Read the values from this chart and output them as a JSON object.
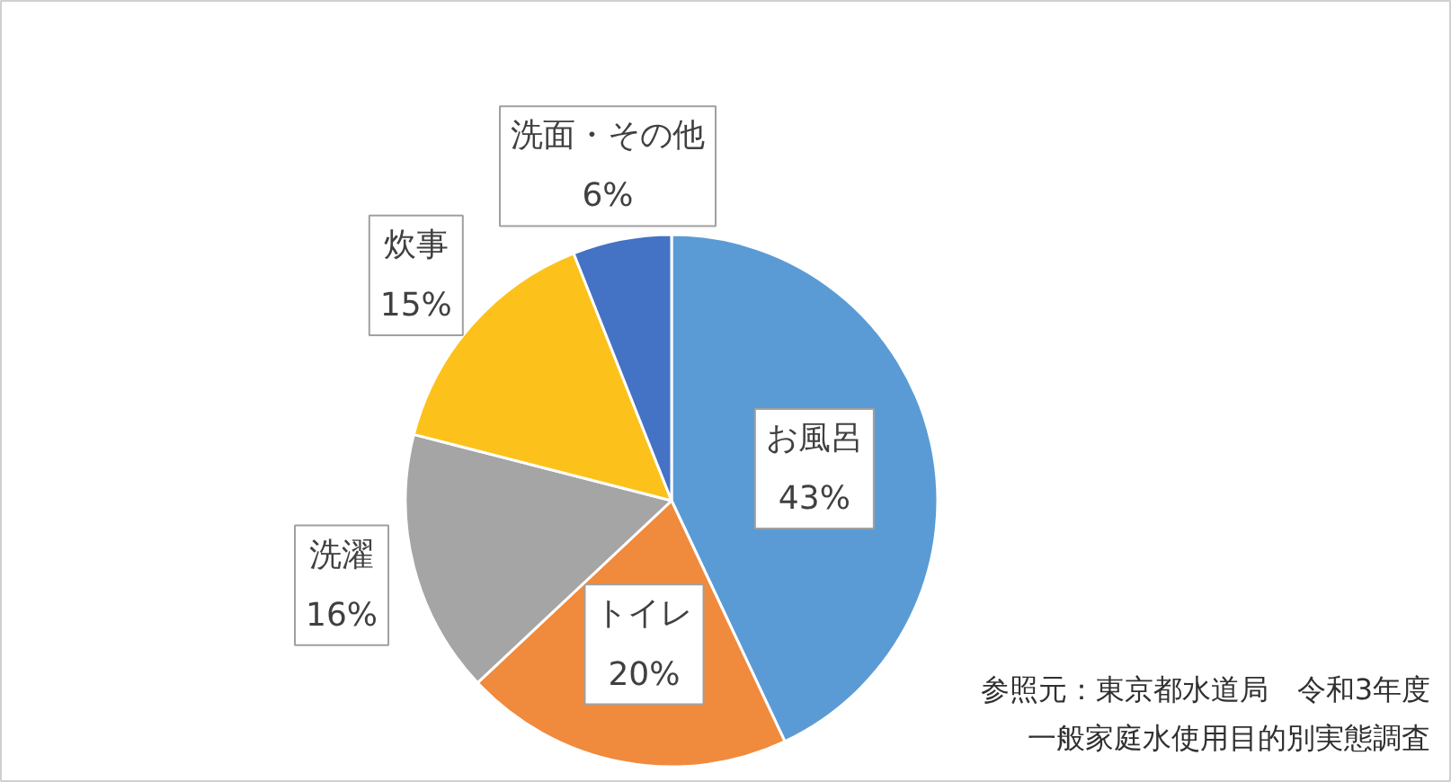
{
  "chart_data": {
    "type": "pie",
    "categories": [
      "お風呂",
      "トイレ",
      "洗濯",
      "炊事",
      "洗面・その他"
    ],
    "values": [
      43,
      20,
      16,
      15,
      6
    ],
    "value_labels": [
      "43%",
      "20%",
      "16%",
      "15%",
      "6%"
    ],
    "colors": [
      "#5b9bd5",
      "#f08a3c",
      "#a5a5a5",
      "#fcc21b",
      "#4472c4"
    ],
    "annotations": [
      "参照元：東京都水道局　令和3年度",
      "一般家庭水使用目的別実態調査"
    ]
  }
}
